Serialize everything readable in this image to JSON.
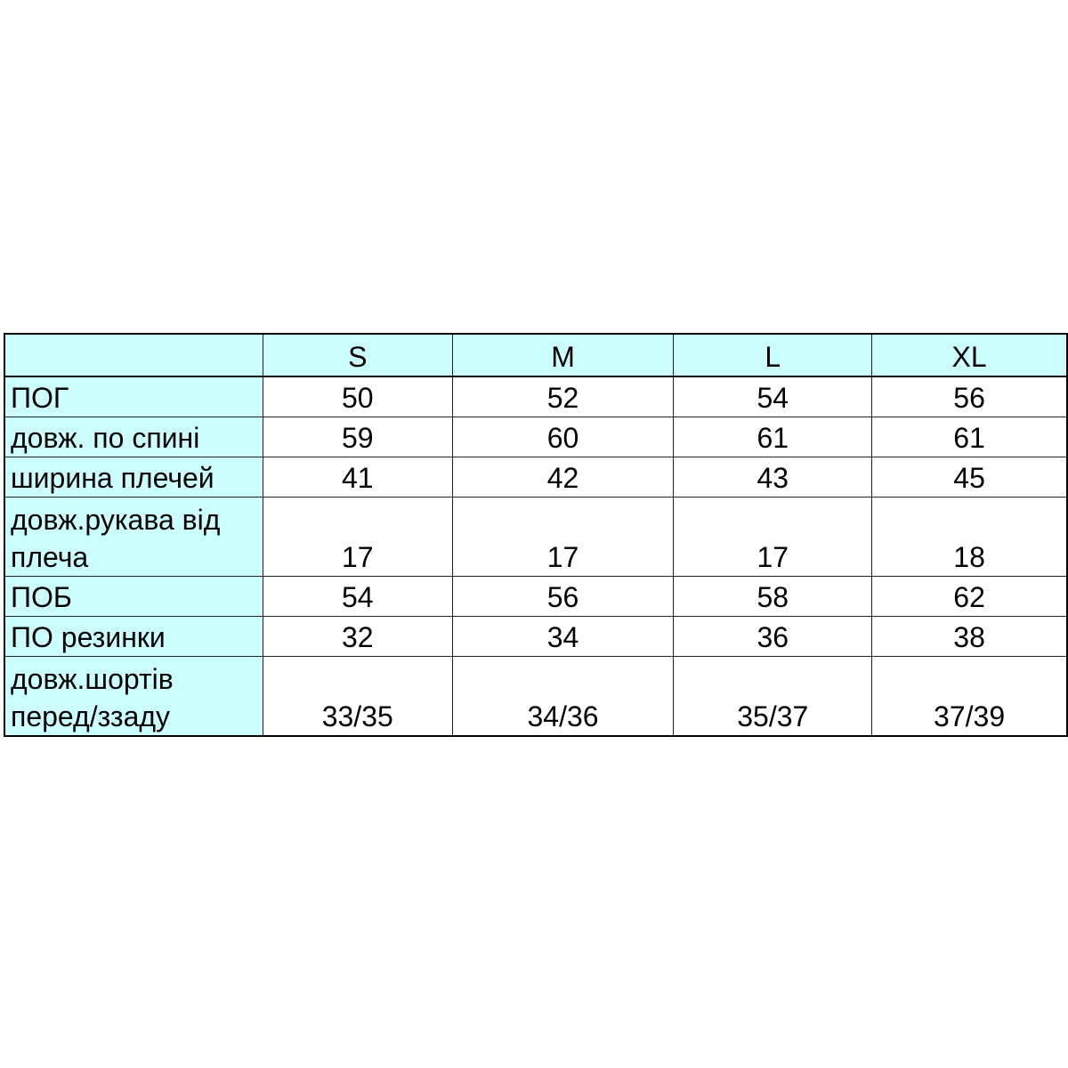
{
  "table": {
    "headers": [
      "",
      "S",
      "M",
      "L",
      "XL"
    ],
    "rows": [
      {
        "label": "ПОГ",
        "values": [
          "50",
          "52",
          "54",
          "56"
        ],
        "tall": false
      },
      {
        "label": "довж. по спині",
        "values": [
          "59",
          "60",
          "61",
          "61"
        ],
        "tall": false
      },
      {
        "label": "ширина плечей",
        "values": [
          "41",
          "42",
          "43",
          "45"
        ],
        "tall": false
      },
      {
        "label": "довж.рукава від плеча",
        "values": [
          "17",
          "17",
          "17",
          "18"
        ],
        "tall": true
      },
      {
        "label": "ПОБ",
        "values": [
          "54",
          "56",
          "58",
          "62"
        ],
        "tall": false
      },
      {
        "label": "ПО резинки",
        "values": [
          "32",
          "34",
          "36",
          "38"
        ],
        "tall": false
      },
      {
        "label": "довж.шортів перед/ззаду",
        "values": [
          "33/35",
          "34/36",
          "35/37",
          "37/39"
        ],
        "tall": true
      }
    ],
    "colors": {
      "header_bg": "#ccffff",
      "label_bg": "#ccffff",
      "cell_bg": "#ffffff",
      "border": "#000000"
    }
  }
}
